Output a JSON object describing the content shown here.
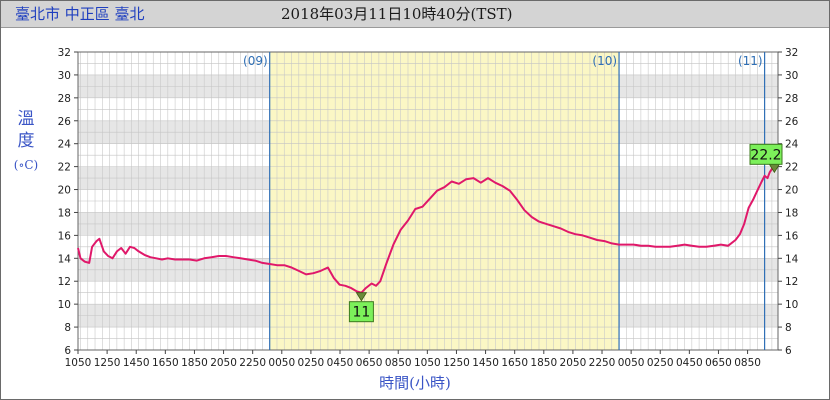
{
  "header": {
    "location": "臺北市 中正區 臺北",
    "timestamp": "2018年03月11日10時40分(TST)"
  },
  "chart_data": {
    "type": "line",
    "title": "",
    "xlabel": "時間(小時)",
    "ylabel": "溫度",
    "yunit": "(∘C)",
    "ylim": [
      6,
      32
    ],
    "yticks": [
      6,
      8,
      10,
      12,
      14,
      16,
      18,
      20,
      22,
      24,
      26,
      28,
      30,
      32
    ],
    "grid": true,
    "xlim_hours": [
      10.83,
      35.33
    ],
    "xticks": [
      {
        "h": 10.83,
        "label": "1050"
      },
      {
        "h": 12.83,
        "label": "1250"
      },
      {
        "h": 14.83,
        "label": "1450"
      },
      {
        "h": 16.83,
        "label": "1650"
      },
      {
        "h": 18.83,
        "label": "1850"
      },
      {
        "h": 20.83,
        "label": "2050"
      },
      {
        "h": 22.83,
        "label": "2250"
      },
      {
        "h": 24.83,
        "label": "0050"
      },
      {
        "h": 26.83,
        "label": "0250"
      },
      {
        "h": 28.83,
        "label": "0450"
      },
      {
        "h": 30.83,
        "label": "0650"
      },
      {
        "h": 32.83,
        "label": "0850"
      },
      {
        "h": 34.83,
        "label": "1050"
      },
      {
        "h": 36.83,
        "label": "1250"
      },
      {
        "h": 38.83,
        "label": "1450"
      },
      {
        "h": 40.83,
        "label": "1650"
      },
      {
        "h": 42.83,
        "label": "1850"
      },
      {
        "h": 44.83,
        "label": "2050"
      },
      {
        "h": 46.83,
        "label": "2250"
      },
      {
        "h": 48.83,
        "label": "0050"
      },
      {
        "h": 50.83,
        "label": "0250"
      },
      {
        "h": 52.83,
        "label": "0450"
      },
      {
        "h": 54.83,
        "label": "0650"
      },
      {
        "h": 56.83,
        "label": "0850"
      }
    ],
    "day_markers": [
      {
        "h": 24.0,
        "label": "(09)"
      },
      {
        "h": 48.0,
        "label": "(10)"
      },
      {
        "h": 58.0,
        "label": "(11)"
      }
    ],
    "highlight_day": {
      "start_h": 24.0,
      "end_h": 48.0
    },
    "series": [
      {
        "name": "",
        "color": "#e0186a",
        "points": [
          [
            10.83,
            14.9
          ],
          [
            11.0,
            14.0
          ],
          [
            11.3,
            13.7
          ],
          [
            11.6,
            13.6
          ],
          [
            11.8,
            15.0
          ],
          [
            12.1,
            15.5
          ],
          [
            12.3,
            15.7
          ],
          [
            12.6,
            14.6
          ],
          [
            12.9,
            14.2
          ],
          [
            13.2,
            14.0
          ],
          [
            13.5,
            14.6
          ],
          [
            13.8,
            14.9
          ],
          [
            14.1,
            14.4
          ],
          [
            14.4,
            15.0
          ],
          [
            14.7,
            14.9
          ],
          [
            15.0,
            14.6
          ],
          [
            15.4,
            14.3
          ],
          [
            15.8,
            14.1
          ],
          [
            16.2,
            14.0
          ],
          [
            16.6,
            13.9
          ],
          [
            17.0,
            14.0
          ],
          [
            17.5,
            13.9
          ],
          [
            18.0,
            13.9
          ],
          [
            18.5,
            13.9
          ],
          [
            19.0,
            13.8
          ],
          [
            19.5,
            14.0
          ],
          [
            20.0,
            14.1
          ],
          [
            20.5,
            14.2
          ],
          [
            21.0,
            14.2
          ],
          [
            21.5,
            14.1
          ],
          [
            22.0,
            14.0
          ],
          [
            22.5,
            13.9
          ],
          [
            23.0,
            13.8
          ],
          [
            23.5,
            13.6
          ],
          [
            24.0,
            13.5
          ],
          [
            24.5,
            13.4
          ],
          [
            25.0,
            13.4
          ],
          [
            25.5,
            13.2
          ],
          [
            26.0,
            12.9
          ],
          [
            26.5,
            12.6
          ],
          [
            27.0,
            12.7
          ],
          [
            27.5,
            12.9
          ],
          [
            28.0,
            13.2
          ],
          [
            28.4,
            12.3
          ],
          [
            28.8,
            11.7
          ],
          [
            29.2,
            11.6
          ],
          [
            29.6,
            11.4
          ],
          [
            30.0,
            11.1
          ],
          [
            30.3,
            11.0
          ],
          [
            30.6,
            11.4
          ],
          [
            31.0,
            11.8
          ],
          [
            31.3,
            11.6
          ],
          [
            31.6,
            12.0
          ],
          [
            32.0,
            13.5
          ],
          [
            32.5,
            15.2
          ],
          [
            33.0,
            16.5
          ],
          [
            33.5,
            17.3
          ],
          [
            34.0,
            18.3
          ],
          [
            34.5,
            18.5
          ],
          [
            35.0,
            19.2
          ],
          [
            35.5,
            19.9
          ],
          [
            36.0,
            20.2
          ],
          [
            36.5,
            20.7
          ],
          [
            37.0,
            20.5
          ],
          [
            37.5,
            20.9
          ],
          [
            38.0,
            21.0
          ],
          [
            38.5,
            20.6
          ],
          [
            39.0,
            21.0
          ],
          [
            39.5,
            20.6
          ],
          [
            40.0,
            20.3
          ],
          [
            40.5,
            19.9
          ],
          [
            41.0,
            19.1
          ],
          [
            41.5,
            18.2
          ],
          [
            42.0,
            17.6
          ],
          [
            42.5,
            17.2
          ],
          [
            43.0,
            17.0
          ],
          [
            43.5,
            16.8
          ],
          [
            44.0,
            16.6
          ],
          [
            44.5,
            16.3
          ],
          [
            45.0,
            16.1
          ],
          [
            45.5,
            16.0
          ],
          [
            46.0,
            15.8
          ],
          [
            46.5,
            15.6
          ],
          [
            47.0,
            15.5
          ],
          [
            47.5,
            15.3
          ],
          [
            48.0,
            15.2
          ],
          [
            48.5,
            15.2
          ],
          [
            49.0,
            15.2
          ],
          [
            49.5,
            15.1
          ],
          [
            50.0,
            15.1
          ],
          [
            50.5,
            15.0
          ],
          [
            51.0,
            15.0
          ],
          [
            51.5,
            15.0
          ],
          [
            52.0,
            15.1
          ],
          [
            52.5,
            15.2
          ],
          [
            53.0,
            15.1
          ],
          [
            53.5,
            15.0
          ],
          [
            54.0,
            15.0
          ],
          [
            54.5,
            15.1
          ],
          [
            55.0,
            15.2
          ],
          [
            55.5,
            15.1
          ],
          [
            56.0,
            15.6
          ],
          [
            56.3,
            16.1
          ],
          [
            56.6,
            17.0
          ],
          [
            56.9,
            18.4
          ],
          [
            57.2,
            19.1
          ],
          [
            57.5,
            19.9
          ],
          [
            57.8,
            20.7
          ],
          [
            58.0,
            21.2
          ],
          [
            58.2,
            21.0
          ],
          [
            58.35,
            21.5
          ],
          [
            58.5,
            21.8
          ],
          [
            58.67,
            22.2
          ]
        ]
      }
    ],
    "annotations": [
      {
        "kind": "min",
        "h": 30.3,
        "value": 11.0,
        "label": "11"
      },
      {
        "kind": "current",
        "h": 58.67,
        "value": 22.2,
        "label": "22.2"
      }
    ]
  }
}
